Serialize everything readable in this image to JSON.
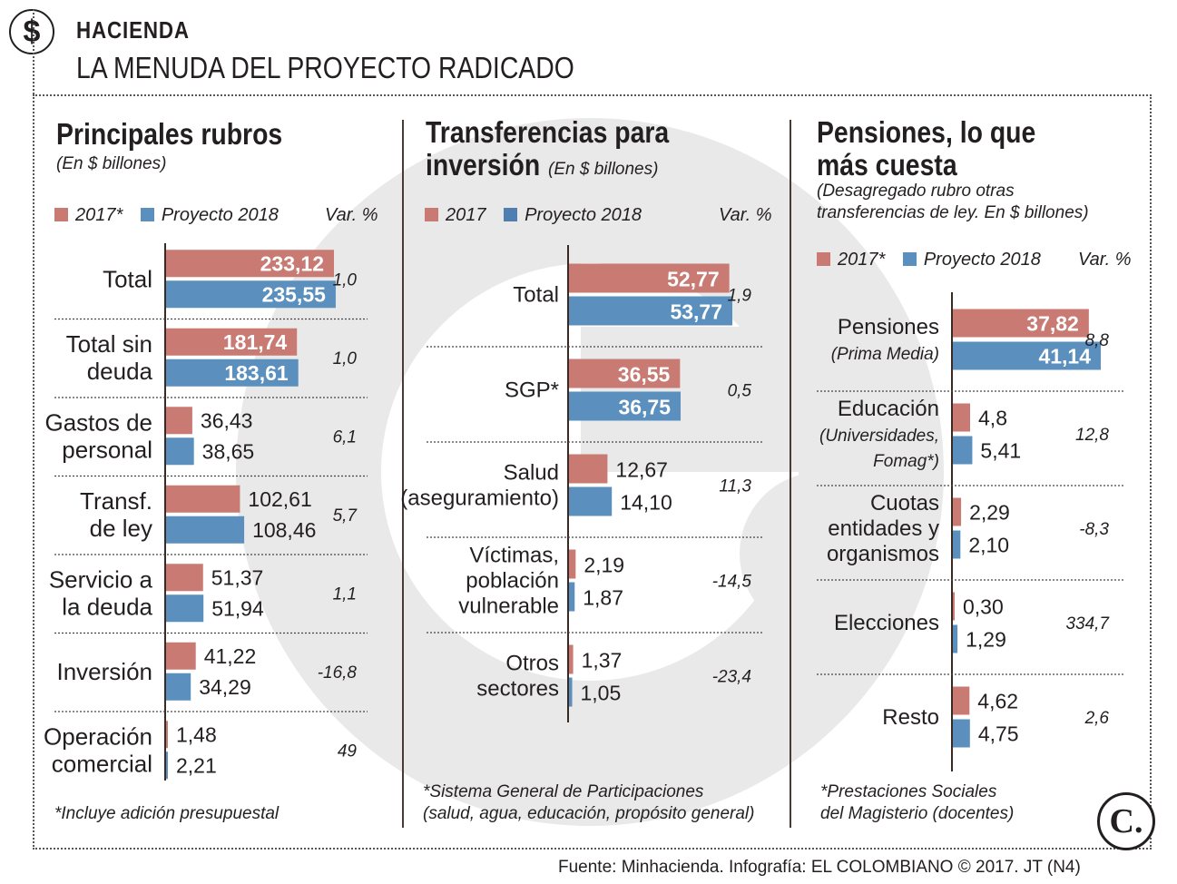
{
  "header": {
    "section": "HACIENDA",
    "title": "LA MENUDA DEL PROYECTO RADICADO",
    "icon": "dollar-icon"
  },
  "colors": {
    "y2017": "#c87a73",
    "y2018": "#5a8fbe",
    "text": "#231f20",
    "watermark": "#e6e6e6"
  },
  "panels": [
    {
      "title": "Principales rubros",
      "subtitle": "(En $ billones)",
      "legend_2017": "2017*",
      "legend_2018": "Proyecto 2018",
      "var_header": "Var. %",
      "note": "*Incluye adición presupuestal"
    },
    {
      "title_line1": "Transferencias para",
      "title_line2": "inversión",
      "subtitle": "(En $ billones)",
      "legend_2017": "2017",
      "legend_2018": "Proyecto 2018",
      "var_header": "Var. %",
      "note_line1": "*Sistema General de Participaciones",
      "note_line2": "(salud, agua, educación, propósito general)"
    },
    {
      "title_line1": "Pensiones, lo que",
      "title_line2": "más cuesta",
      "subtitle_line1": "(Desagregado rubro otras",
      "subtitle_line2": "transferencias de ley. En $ billones)",
      "legend_2017": "2017*",
      "legend_2018": "Proyecto 2018",
      "var_header": "Var. %",
      "note_line1": "*Prestaciones Sociales",
      "note_line2": "del Magisterio (docentes)"
    }
  ],
  "chart_data": [
    {
      "type": "bar",
      "title": "Principales rubros",
      "categories": [
        [
          "Total"
        ],
        [
          "Total sin",
          "deuda"
        ],
        [
          "Gastos de",
          "personal"
        ],
        [
          "Transf.",
          "de ley"
        ],
        [
          "Servicio a",
          "la deuda"
        ],
        [
          "Inversión"
        ],
        [
          "Operación",
          "comercial"
        ]
      ],
      "series": [
        {
          "name": "2017*",
          "values": [
            233.12,
            181.74,
            36.43,
            102.61,
            51.37,
            41.22,
            1.48
          ],
          "labels": [
            "233,12",
            "181,74",
            "36,43",
            "102,61",
            "51,37",
            "41,22",
            "1,48"
          ]
        },
        {
          "name": "Proyecto 2018",
          "values": [
            235.55,
            183.61,
            38.65,
            108.46,
            51.94,
            34.29,
            2.21
          ],
          "labels": [
            "235,55",
            "183,61",
            "38,65",
            "108,46",
            "51,94",
            "34,29",
            "2,21"
          ]
        }
      ],
      "var": [
        "1,0",
        "1,0",
        "6,1",
        "5,7",
        "1,1",
        "-16,8",
        "49"
      ],
      "inside_threshold": 150
    },
    {
      "type": "bar",
      "title": "Transferencias para inversión",
      "categories": [
        [
          "Total"
        ],
        [
          "SGP*"
        ],
        [
          "Salud",
          "(aseguramiento)"
        ],
        [
          "Víctimas,",
          "población",
          "vulnerable"
        ],
        [
          "Otros",
          "sectores"
        ]
      ],
      "series": [
        {
          "name": "2017",
          "values": [
            52.77,
            36.55,
            12.67,
            2.19,
            1.37
          ],
          "labels": [
            "52,77",
            "36,55",
            "12,67",
            "2,19",
            "1,37"
          ]
        },
        {
          "name": "Proyecto 2018",
          "values": [
            53.77,
            36.75,
            14.1,
            1.87,
            1.05
          ],
          "labels": [
            "53,77",
            "36,75",
            "14,10",
            "1,87",
            "1,05"
          ]
        }
      ],
      "var": [
        "1,9",
        "0,5",
        "11,3",
        "-14,5",
        "-23,4"
      ],
      "inside_threshold": 30
    },
    {
      "type": "bar",
      "title": "Pensiones, lo que más cuesta",
      "categories": [
        [
          "Pensiones",
          "(Prima Media)"
        ],
        [
          "Educación",
          "(Universidades,",
          "Fomag*)"
        ],
        [
          "Cuotas",
          "entidades y",
          "organismos"
        ],
        [
          "Elecciones"
        ],
        [
          "Resto"
        ]
      ],
      "series": [
        {
          "name": "2017*",
          "values": [
            37.82,
            4.8,
            2.29,
            0.3,
            4.62
          ],
          "labels": [
            "37,82",
            "4,8",
            "2,29",
            "0,30",
            "4,62"
          ]
        },
        {
          "name": "Proyecto 2018",
          "values": [
            41.14,
            5.41,
            2.1,
            1.29,
            4.75
          ],
          "labels": [
            "41,14",
            "5,41",
            "2,10",
            "1,29",
            "4,75"
          ]
        }
      ],
      "var": [
        "8,8",
        "12,8",
        "-8,3",
        "334,7",
        "2,6"
      ],
      "inside_threshold": 30
    }
  ],
  "footer": {
    "source": "Fuente: Minhacienda. Infografía: EL COLOMBIANO © 2017. JT (N4)",
    "logo_text": "C."
  }
}
